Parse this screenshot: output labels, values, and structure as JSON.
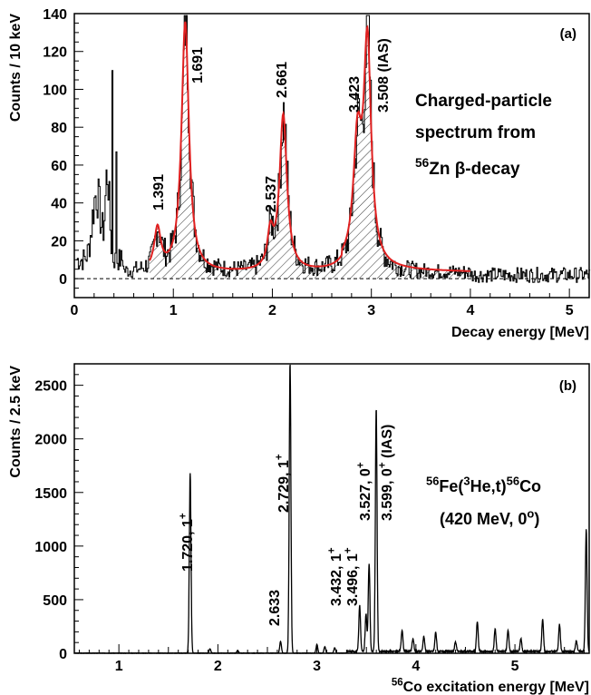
{
  "chart_data": [
    {
      "type": "line",
      "panel": "(a)",
      "xlabel": "Decay energy [MeV]",
      "ylabel": "Counts / 10 keV",
      "xlim": [
        0,
        5.2
      ],
      "ylim": [
        -10,
        140
      ],
      "xticks": [
        0,
        1,
        2,
        3,
        4,
        5
      ],
      "yticks": [
        0,
        20,
        40,
        60,
        80,
        100,
        120,
        140
      ],
      "zero_line": "dashed",
      "text_box": [
        "Charged-particle",
        "spectrum from",
        "Zn β-decay"
      ],
      "text_box_sup": "56",
      "peaks": [
        {
          "energy": 0.84,
          "label": "1.391",
          "height": 22,
          "width": 0.04
        },
        {
          "energy": 1.12,
          "label": "1.691",
          "height": 132,
          "width": 0.045
        },
        {
          "energy": 1.98,
          "label": "2.537",
          "height": 18,
          "width": 0.035
        },
        {
          "energy": 2.11,
          "label": "2.661",
          "height": 82,
          "width": 0.045
        },
        {
          "energy": 2.86,
          "label": "3.423",
          "height": 62,
          "width": 0.05
        },
        {
          "energy": 2.96,
          "label": "3.508 (IAS)",
          "height": 115,
          "width": 0.045
        }
      ],
      "series": [
        {
          "role": "histogram",
          "x": [
            0.05,
            0.1,
            0.15,
            0.2,
            0.25,
            0.3,
            0.35,
            0.4,
            0.45,
            0.5,
            0.6,
            0.7,
            0.8,
            0.84,
            0.9,
            1.0,
            1.05,
            1.1,
            1.12,
            1.15,
            1.2,
            1.3,
            1.4,
            1.5,
            1.6,
            1.7,
            1.8,
            1.9,
            1.98,
            2.05,
            2.11,
            2.15,
            2.2,
            2.3,
            2.4,
            2.5,
            2.6,
            2.7,
            2.8,
            2.86,
            2.9,
            2.96,
            3.0,
            3.1,
            3.2,
            3.4,
            3.6,
            3.8,
            4.0,
            4.2,
            4.5,
            5.0,
            5.2
          ],
          "y": [
            5,
            0,
            25,
            45,
            20,
            100,
            40,
            10,
            5,
            5,
            5,
            3,
            12,
            25,
            12,
            3,
            2,
            60,
            136,
            70,
            40,
            18,
            12,
            8,
            6,
            5,
            4,
            6,
            20,
            40,
            90,
            50,
            25,
            12,
            8,
            6,
            5,
            6,
            25,
            82,
            70,
            135,
            80,
            40,
            25,
            15,
            10,
            8,
            6,
            3,
            2,
            2,
            2
          ]
        },
        {
          "role": "fit",
          "x": [
            0.5,
            0.8,
            0.84,
            0.9,
            1.0,
            1.05,
            1.1,
            1.12,
            1.15,
            1.2,
            1.4,
            1.6,
            1.8,
            1.95,
            1.98,
            2.05,
            2.11,
            2.15,
            2.3,
            2.5,
            2.7,
            2.8,
            2.86,
            2.9,
            2.96,
            3.0,
            3.2,
            3.5,
            4.0
          ],
          "y": [
            5,
            10,
            22,
            10,
            3,
            10,
            80,
            133,
            95,
            45,
            12,
            5,
            4,
            8,
            18,
            30,
            82,
            50,
            15,
            6,
            6,
            25,
            62,
            55,
            115,
            85,
            30,
            12,
            5
          ]
        }
      ],
      "colors": {
        "fit": "#e02020",
        "histogram": "#000000"
      }
    },
    {
      "type": "line",
      "panel": "(b)",
      "xlabel": "Co excitation energy [MeV]",
      "xlabel_sup": "56",
      "ylabel": "Counts / 2.5 keV",
      "xlim": [
        0.55,
        5.75
      ],
      "ylim": [
        0,
        2700
      ],
      "xticks": [
        1,
        2,
        3,
        4,
        5
      ],
      "yticks": [
        0,
        500,
        1000,
        1500,
        2000,
        2500
      ],
      "reaction_text": [
        "Fe(",
        "He,t)",
        "Co"
      ],
      "reaction_sups": [
        "56",
        "3",
        "56"
      ],
      "beam_text": "(420 MeV, 0",
      "beam_sup": "o",
      "beam_tail": ")",
      "peaks": [
        {
          "energy": 1.72,
          "label": "1.720, 1",
          "sup": "+",
          "counts": 1680
        },
        {
          "energy": 2.633,
          "label": "2.633",
          "sup": "",
          "counts": 110
        },
        {
          "energy": 2.729,
          "label": "2.729, 1",
          "sup": "+",
          "counts": 2710
        },
        {
          "energy": 3.432,
          "label": "3.432, 1",
          "sup": "+",
          "counts": 430
        },
        {
          "energy": 3.496,
          "label": "3.496, 1",
          "sup": "+",
          "counts": 350
        },
        {
          "energy": 3.527,
          "label": "3.527, 0",
          "sup": "+",
          "counts": 820
        },
        {
          "energy": 3.599,
          "label": "3.599, 0",
          "sup": "+ (IAS)",
          "counts": 2270
        }
      ],
      "minor_peaks": [
        {
          "energy": 1.92,
          "counts": 40
        },
        {
          "energy": 2.2,
          "counts": 25
        },
        {
          "energy": 3.0,
          "counts": 80
        },
        {
          "energy": 3.08,
          "counts": 60
        },
        {
          "energy": 3.18,
          "counts": 50
        },
        {
          "energy": 3.86,
          "counts": 200
        },
        {
          "energy": 3.97,
          "counts": 120
        },
        {
          "energy": 4.08,
          "counts": 140
        },
        {
          "energy": 4.2,
          "counts": 180
        },
        {
          "energy": 4.4,
          "counts": 90
        },
        {
          "energy": 4.62,
          "counts": 280
        },
        {
          "energy": 4.8,
          "counts": 210
        },
        {
          "energy": 4.93,
          "counts": 200
        },
        {
          "energy": 5.06,
          "counts": 120
        },
        {
          "energy": 5.28,
          "counts": 300
        },
        {
          "energy": 5.45,
          "counts": 250
        },
        {
          "energy": 5.62,
          "counts": 100
        },
        {
          "energy": 5.72,
          "counts": 1140
        }
      ]
    }
  ]
}
